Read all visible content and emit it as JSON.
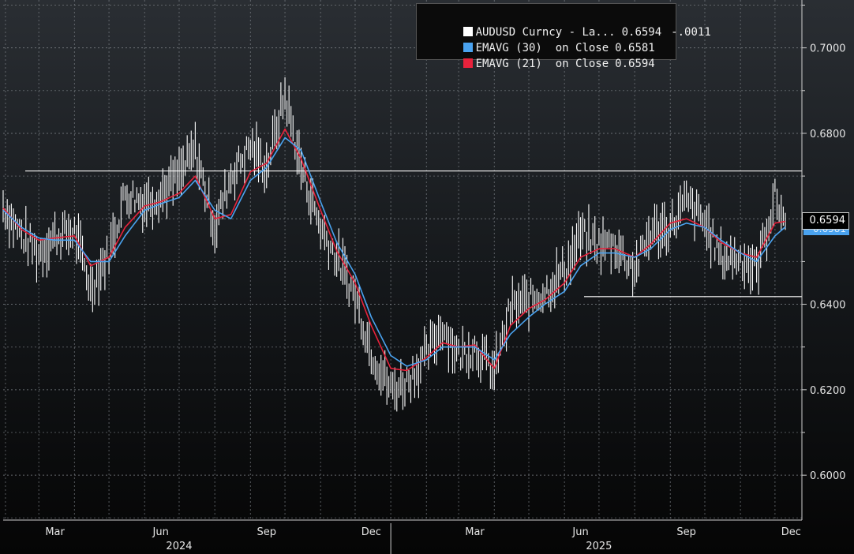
{
  "legend": {
    "main": {
      "label": "AUDUSD Curncy - La...",
      "value": "0.6594",
      "change": "-.0011",
      "color": "#ffffff"
    },
    "ema30": {
      "label": "EMAVG (30)  on Close",
      "value": "0.6581",
      "color": "#4aa3f0"
    },
    "ema21": {
      "label": "EMAVG (21)  on Close",
      "value": "0.6594",
      "color": "#e8223c"
    }
  },
  "price_tags": {
    "last": "0.6594",
    "ema30": "0.6581"
  },
  "chart_data": {
    "type": "line",
    "y_axis": {
      "position": "right",
      "ylim": [
        0.5895,
        0.7112
      ],
      "ticks": [
        "0.6000",
        "0.6200",
        "0.6400",
        "0.6600",
        "0.6800",
        "0.7000"
      ]
    },
    "x_axis": {
      "month_ticks": [
        "Mar",
        "Jun",
        "Sep",
        "Dec",
        "Mar",
        "Jun",
        "Sep",
        "Dec"
      ],
      "year_labels": [
        "2024",
        "2025"
      ]
    },
    "grid": true,
    "legend_position": "top-right",
    "horizontal_lines": [
      0.6712,
      0.6418
    ],
    "x": [
      "2024-01-30",
      "2024-02-15",
      "2024-03-01",
      "2024-03-15",
      "2024-04-01",
      "2024-04-15",
      "2024-05-01",
      "2024-05-15",
      "2024-06-01",
      "2024-06-15",
      "2024-07-01",
      "2024-07-15",
      "2024-08-01",
      "2024-08-15",
      "2024-09-01",
      "2024-09-15",
      "2024-10-01",
      "2024-10-15",
      "2024-11-01",
      "2024-11-15",
      "2024-12-01",
      "2024-12-15",
      "2025-01-01",
      "2025-01-15",
      "2025-02-01",
      "2025-02-15",
      "2025-03-01",
      "2025-03-15",
      "2025-04-01",
      "2025-04-15",
      "2025-05-01",
      "2025-05-15",
      "2025-06-01",
      "2025-06-15",
      "2025-07-01",
      "2025-07-15",
      "2025-08-01",
      "2025-08-15",
      "2025-09-01",
      "2025-09-15",
      "2025-10-01",
      "2025-10-15",
      "2025-11-01",
      "2025-11-15",
      "2025-12-01",
      "2025-12-10"
    ],
    "series": [
      {
        "name": "AUDUSD Curncy",
        "color": "#ffffff",
        "values": [
          0.663,
          0.656,
          0.652,
          0.656,
          0.657,
          0.644,
          0.652,
          0.666,
          0.664,
          0.666,
          0.67,
          0.676,
          0.658,
          0.67,
          0.677,
          0.672,
          0.689,
          0.672,
          0.658,
          0.651,
          0.642,
          0.629,
          0.62,
          0.622,
          0.628,
          0.635,
          0.628,
          0.63,
          0.624,
          0.639,
          0.641,
          0.643,
          0.648,
          0.656,
          0.654,
          0.654,
          0.648,
          0.657,
          0.658,
          0.664,
          0.659,
          0.651,
          0.651,
          0.648,
          0.665,
          0.6594
        ]
      },
      {
        "name": "EMAVG (30)",
        "color": "#4aa3f0",
        "values": [
          0.662,
          0.658,
          0.6555,
          0.655,
          0.655,
          0.65,
          0.65,
          0.656,
          0.662,
          0.6635,
          0.665,
          0.669,
          0.662,
          0.66,
          0.669,
          0.672,
          0.679,
          0.676,
          0.664,
          0.6545,
          0.647,
          0.637,
          0.628,
          0.6255,
          0.627,
          0.63,
          0.63,
          0.63,
          0.627,
          0.633,
          0.637,
          0.64,
          0.643,
          0.649,
          0.652,
          0.652,
          0.651,
          0.653,
          0.6575,
          0.659,
          0.658,
          0.655,
          0.652,
          0.65,
          0.656,
          0.6581
        ]
      },
      {
        "name": "EMAVG (21)",
        "color": "#e8223c",
        "values": [
          0.6625,
          0.6575,
          0.655,
          0.6555,
          0.656,
          0.649,
          0.651,
          0.658,
          0.663,
          0.664,
          0.666,
          0.67,
          0.66,
          0.661,
          0.671,
          0.673,
          0.681,
          0.674,
          0.662,
          0.6525,
          0.645,
          0.635,
          0.625,
          0.6245,
          0.6275,
          0.631,
          0.63,
          0.6305,
          0.625,
          0.635,
          0.639,
          0.641,
          0.645,
          0.651,
          0.653,
          0.653,
          0.651,
          0.654,
          0.659,
          0.66,
          0.658,
          0.6545,
          0.652,
          0.651,
          0.659,
          0.6594
        ]
      }
    ]
  }
}
